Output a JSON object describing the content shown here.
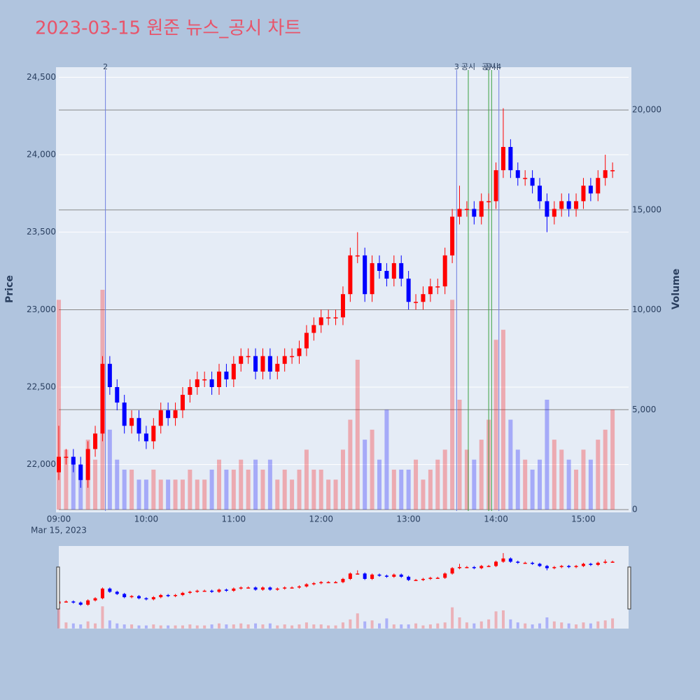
{
  "chart_data": {
    "type": "candlestick",
    "title": "2023-03-15 원준 뉴스_공시 차트",
    "y_label": "Price",
    "y2_label": "Volume",
    "x_date_label": "Mar 15, 2023",
    "up_color": "#ff0000",
    "down_color": "#0000ff",
    "x": [
      "2023-03-15 09:00",
      "2023-03-15 09:05",
      "2023-03-15 09:10",
      "2023-03-15 09:15",
      "2023-03-15 09:20",
      "2023-03-15 09:25",
      "2023-03-15 09:30",
      "2023-03-15 09:35",
      "2023-03-15 09:40",
      "2023-03-15 09:45",
      "2023-03-15 09:50",
      "2023-03-15 09:55",
      "2023-03-15 10:00",
      "2023-03-15 10:05",
      "2023-03-15 10:10",
      "2023-03-15 10:15",
      "2023-03-15 10:20",
      "2023-03-15 10:25",
      "2023-03-15 10:30",
      "2023-03-15 10:35",
      "2023-03-15 10:40",
      "2023-03-15 10:45",
      "2023-03-15 10:50",
      "2023-03-15 10:55",
      "2023-03-15 11:00",
      "2023-03-15 11:05",
      "2023-03-15 11:10",
      "2023-03-15 11:15",
      "2023-03-15 11:20",
      "2023-03-15 11:25",
      "2023-03-15 11:30",
      "2023-03-15 11:35",
      "2023-03-15 11:40",
      "2023-03-15 11:45",
      "2023-03-15 11:50",
      "2023-03-15 11:55",
      "2023-03-15 12:00",
      "2023-03-15 12:05",
      "2023-03-15 12:10",
      "2023-03-15 12:15",
      "2023-03-15 12:20",
      "2023-03-15 12:25",
      "2023-03-15 12:30",
      "2023-03-15 12:35",
      "2023-03-15 12:40",
      "2023-03-15 12:45",
      "2023-03-15 12:50",
      "2023-03-15 12:55",
      "2023-03-15 13:00",
      "2023-03-15 13:05",
      "2023-03-15 13:10",
      "2023-03-15 13:15",
      "2023-03-15 13:20",
      "2023-03-15 13:25",
      "2023-03-15 13:30",
      "2023-03-15 13:35",
      "2023-03-15 13:40",
      "2023-03-15 13:45",
      "2023-03-15 13:50",
      "2023-03-15 13:55",
      "2023-03-15 14:00",
      "2023-03-15 14:05",
      "2023-03-15 14:10",
      "2023-03-15 14:15",
      "2023-03-15 14:20",
      "2023-03-15 14:25",
      "2023-03-15 14:30",
      "2023-03-15 14:35",
      "2023-03-15 14:40",
      "2023-03-15 14:45",
      "2023-03-15 14:50",
      "2023-03-15 14:55",
      "2023-03-15 15:00",
      "2023-03-15 15:05",
      "2023-03-15 15:10",
      "2023-03-15 15:15",
      "2023-03-15 15:20"
    ],
    "open": [
      21950,
      22050,
      22050,
      22000,
      21900,
      22100,
      22200,
      22650,
      22500,
      22400,
      22250,
      22300,
      22200,
      22150,
      22250,
      22350,
      22300,
      22350,
      22450,
      22500,
      22550,
      22550,
      22500,
      22600,
      22550,
      22650,
      22700,
      22700,
      22600,
      22700,
      22600,
      22650,
      22700,
      22700,
      22750,
      22850,
      22900,
      22950,
      22950,
      22950,
      23100,
      23350,
      23350,
      23100,
      23300,
      23250,
      23200,
      23300,
      23200,
      23050,
      23050,
      23100,
      23150,
      23150,
      23350,
      23600,
      23650,
      23650,
      23600,
      23700,
      23700,
      23900,
      24050,
      23900,
      23850,
      23850,
      23800,
      23700,
      23600,
      23650,
      23700,
      23650,
      23700,
      23800,
      23750,
      23850,
      23900
    ],
    "high": [
      22250,
      22100,
      22100,
      22050,
      22150,
      22250,
      22700,
      22700,
      22550,
      22450,
      22350,
      22350,
      22250,
      22300,
      22400,
      22400,
      22400,
      22500,
      22550,
      22600,
      22600,
      22600,
      22650,
      22650,
      22700,
      22750,
      22750,
      22750,
      22750,
      22750,
      22700,
      22750,
      22750,
      22800,
      22900,
      22950,
      23000,
      23000,
      23000,
      23150,
      23400,
      23500,
      23400,
      23350,
      23350,
      23300,
      23350,
      23350,
      23250,
      23100,
      23150,
      23200,
      23200,
      23400,
      23650,
      23800,
      23700,
      23700,
      23750,
      23750,
      23950,
      24300,
      24100,
      23950,
      23900,
      23900,
      23850,
      23750,
      23700,
      23750,
      23750,
      23750,
      23850,
      23850,
      23900,
      24000,
      23950
    ],
    "low": [
      21900,
      22000,
      21950,
      21850,
      21850,
      22050,
      22150,
      22450,
      22350,
      22200,
      22200,
      22150,
      22100,
      22100,
      22200,
      22250,
      22250,
      22300,
      22400,
      22450,
      22500,
      22450,
      22450,
      22500,
      22500,
      22600,
      22650,
      22550,
      22550,
      22550,
      22550,
      22600,
      22650,
      22650,
      22700,
      22800,
      22850,
      22900,
      22900,
      22900,
      23050,
      23300,
      23050,
      23050,
      23200,
      23150,
      23150,
      23150,
      23000,
      23000,
      23000,
      23050,
      23100,
      23100,
      23300,
      23550,
      23600,
      23550,
      23550,
      23650,
      23650,
      23850,
      23850,
      23800,
      23800,
      23750,
      23650,
      23500,
      23550,
      23600,
      23600,
      23600,
      23650,
      23700,
      23700,
      23800,
      23850
    ],
    "close": [
      22050,
      22050,
      22000,
      21900,
      22100,
      22200,
      22650,
      22500,
      22400,
      22250,
      22300,
      22200,
      22150,
      22250,
      22350,
      22300,
      22350,
      22450,
      22500,
      22550,
      22550,
      22500,
      22600,
      22550,
      22650,
      22700,
      22700,
      22600,
      22700,
      22600,
      22650,
      22700,
      22700,
      22750,
      22850,
      22900,
      22950,
      22950,
      22950,
      23100,
      23350,
      23350,
      23100,
      23300,
      23250,
      23200,
      23300,
      23200,
      23050,
      23050,
      23100,
      23150,
      23150,
      23350,
      23600,
      23650,
      23650,
      23600,
      23700,
      23700,
      23900,
      24050,
      23900,
      23850,
      23850,
      23800,
      23700,
      23600,
      23650,
      23700,
      23650,
      23700,
      23800,
      23750,
      23850,
      23900,
      23900
    ],
    "volume": [
      10500,
      3000,
      2500,
      2000,
      3500,
      2500,
      11000,
      4000,
      2500,
      2000,
      2000,
      1500,
      1500,
      2000,
      1500,
      1500,
      1500,
      1500,
      2000,
      1500,
      1500,
      2000,
      2500,
      2000,
      2000,
      2500,
      2000,
      2500,
      2000,
      2500,
      1500,
      2000,
      1500,
      2000,
      3000,
      2000,
      2000,
      1500,
      1500,
      3000,
      4500,
      7500,
      3500,
      4000,
      2500,
      5000,
      2000,
      2000,
      2000,
      2500,
      1500,
      2000,
      2500,
      3000,
      10500,
      5500,
      3000,
      2500,
      3500,
      4500,
      8500,
      9000,
      4500,
      3000,
      2500,
      2000,
      2500,
      5500,
      3500,
      3000,
      2500,
      2000,
      3000,
      2500,
      3500,
      4000,
      5000
    ],
    "events": [
      {
        "time": "2023-03-15 09:32",
        "label": "2",
        "color": "#6f7fe0"
      },
      {
        "time": "2023-03-15 13:33",
        "label": "3",
        "color": "#6f7fe0"
      },
      {
        "time": "2023-03-15 13:41",
        "label": "공시",
        "color": "#3aa040"
      },
      {
        "time": "2023-03-15 13:55",
        "label": "공시",
        "color": "#3aa040"
      },
      {
        "time": "2023-03-15 13:57",
        "label": "공시",
        "color": "#3aa040"
      },
      {
        "time": "2023-03-15 14:02",
        "label": "4",
        "color": "#6f7fe0"
      }
    ],
    "xlim": [
      "2023-03-15 09:00",
      "2023-03-15 15:31"
    ],
    "xticks": [
      {
        "value": "2023-03-15 09:00",
        "label": "09:00"
      },
      {
        "value": "2023-03-15 10:00",
        "label": "10:00"
      },
      {
        "value": "2023-03-15 11:00",
        "label": "11:00"
      },
      {
        "value": "2023-03-15 12:00",
        "label": "12:00"
      },
      {
        "value": "2023-03-15 13:00",
        "label": "13:00"
      },
      {
        "value": "2023-03-15 14:00",
        "label": "14:00"
      },
      {
        "value": "2023-03-15 15:00",
        "label": "15:00"
      }
    ],
    "ylim": [
      21700,
      24565
    ],
    "yticks": [
      {
        "value": 22000,
        "label": "22,000"
      },
      {
        "value": 22500,
        "label": "22,500"
      },
      {
        "value": 23000,
        "label": "23,000"
      },
      {
        "value": 23500,
        "label": "23,500"
      },
      {
        "value": 24000,
        "label": "24,000"
      },
      {
        "value": 24500,
        "label": "24,500"
      }
    ],
    "y2lim": [
      -70,
      22140
    ],
    "y2ticks": [
      0,
      {
        "value": 5000,
        "label": "5,000"
      },
      {
        "value": 10000,
        "label": "10,000"
      },
      {
        "value": 15000,
        "label": "15,000"
      },
      {
        "value": 20000,
        "label": "20,000"
      }
    ],
    "grid": true,
    "range_slider": true
  }
}
